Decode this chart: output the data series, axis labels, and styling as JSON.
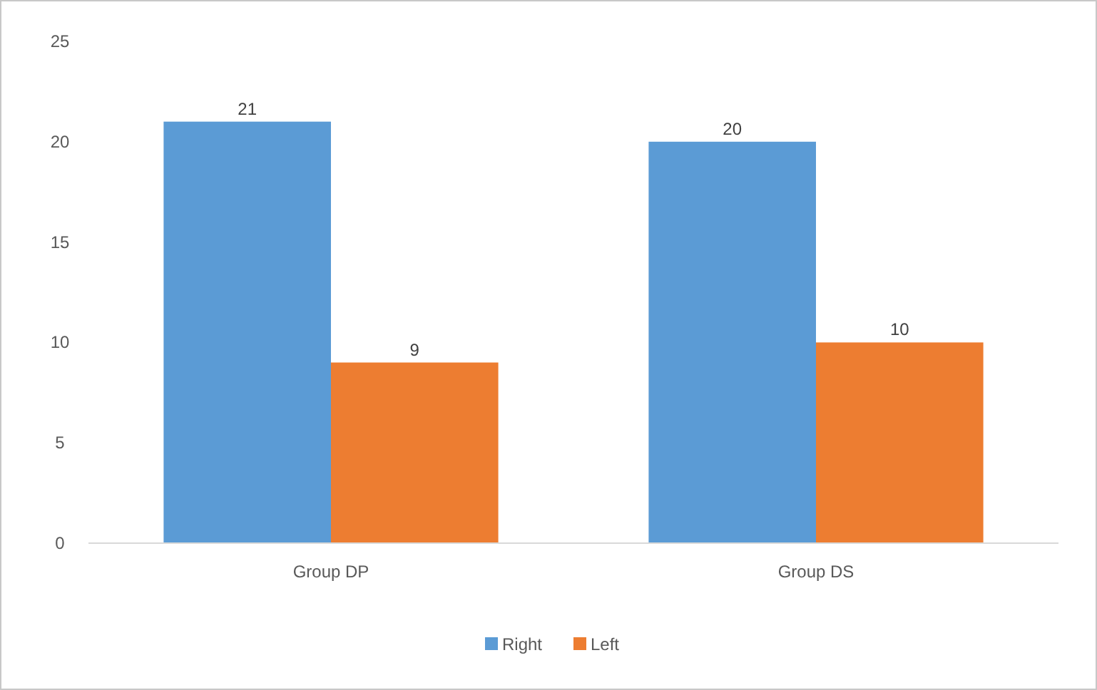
{
  "chart_data": {
    "type": "bar",
    "categories": [
      "Group DP",
      "Group DS"
    ],
    "series": [
      {
        "name": "Right",
        "color": "#5b9bd5",
        "values": [
          21,
          20
        ]
      },
      {
        "name": "Left",
        "color": "#ed7d31",
        "values": [
          9,
          10
        ]
      }
    ],
    "ylim": [
      0,
      25
    ],
    "yticks": [
      0,
      5,
      10,
      15,
      20,
      25
    ],
    "grid": false,
    "data_labels": true,
    "legend": "bottom"
  }
}
